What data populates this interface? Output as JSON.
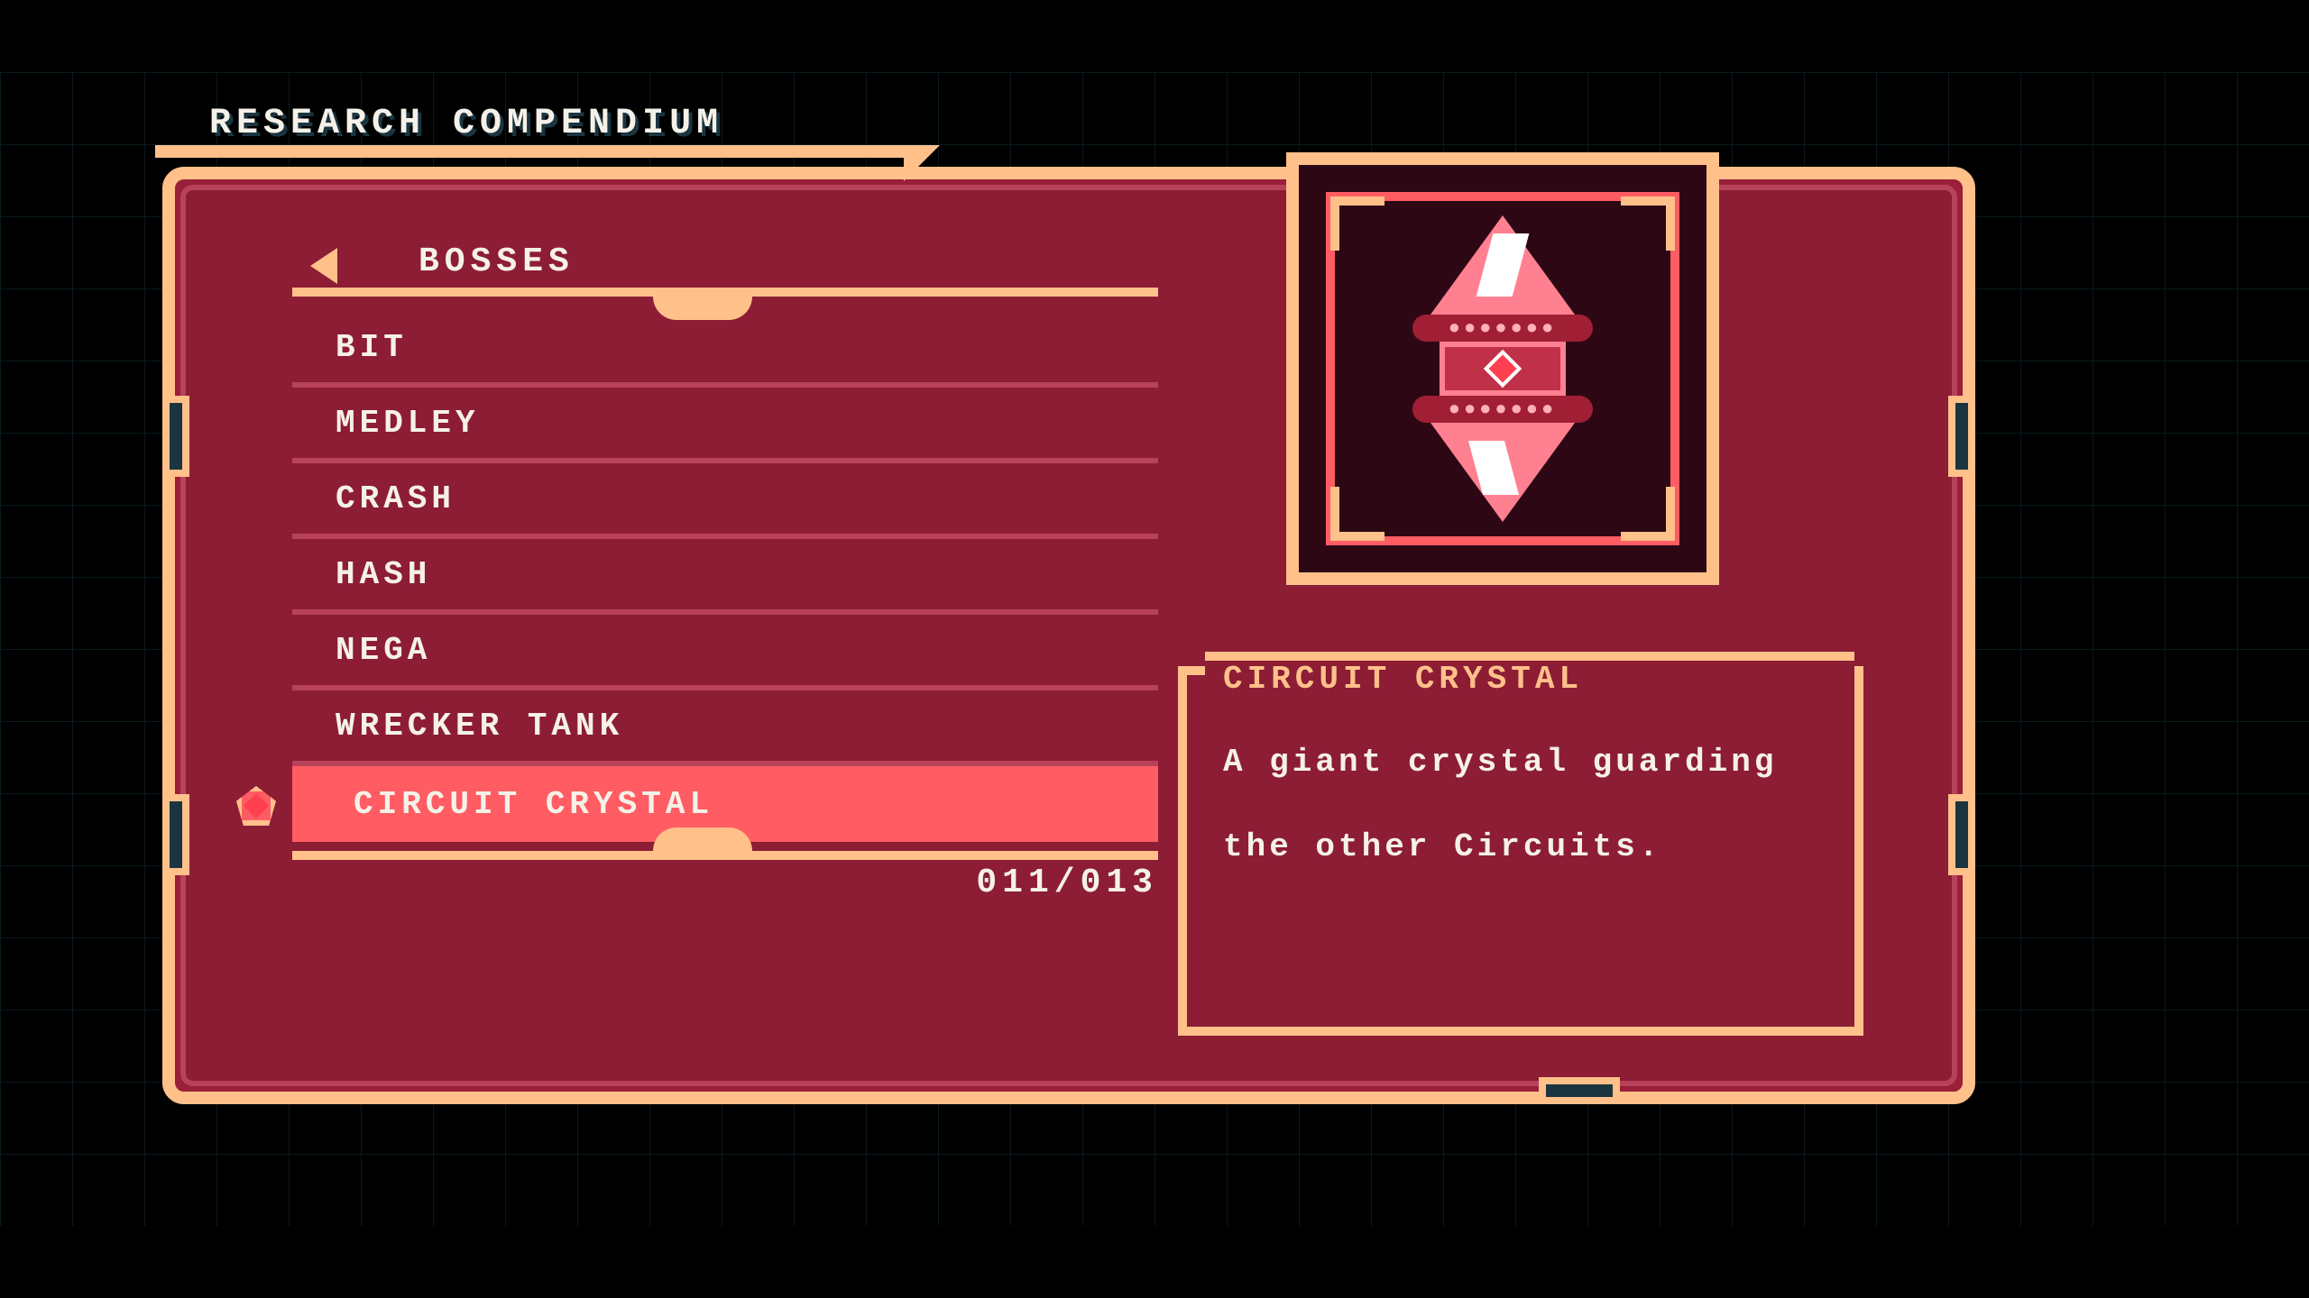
{
  "colors": {
    "bg": "#000000",
    "grid": "#0a1a1f",
    "frame_highlight": "#ffc08a",
    "panel_bg": "#8c1d35",
    "panel_light": "#9a1f3a",
    "row_divider": "#b8425a",
    "selected_bg": "#ff5c63",
    "text": "#f5f1e8",
    "accent_text": "#ffc08a",
    "dark_inset": "#2d0814"
  },
  "header": {
    "title": "RESEARCH COMPENDIUM"
  },
  "list": {
    "category": "BOSSES",
    "items": [
      {
        "label": "BIT",
        "selected": false
      },
      {
        "label": "MEDLEY",
        "selected": false
      },
      {
        "label": "CRASH",
        "selected": false
      },
      {
        "label": "HASH",
        "selected": false
      },
      {
        "label": "NEGA",
        "selected": false
      },
      {
        "label": "WRECKER TANK",
        "selected": false
      },
      {
        "label": "CIRCUIT CRYSTAL",
        "selected": true
      }
    ],
    "page": "011/013"
  },
  "detail": {
    "name": "CIRCUIT CRYSTAL",
    "description": "A giant crystal guarding the other Circuits.",
    "sprite": "circuit-crystal"
  }
}
